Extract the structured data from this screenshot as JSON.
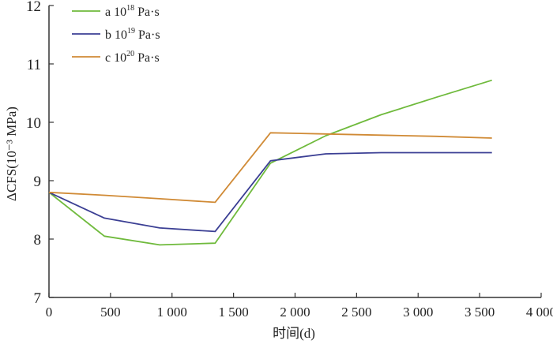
{
  "chart_data": {
    "type": "line",
    "title": "",
    "xlabel": "时间(d)",
    "ylabel": "ΔCFS(10⁻³ MPa)",
    "xlim": [
      0,
      4000
    ],
    "ylim": [
      7,
      12
    ],
    "xticks": [
      0,
      500,
      1000,
      1500,
      2000,
      2500,
      3000,
      3500,
      4000
    ],
    "xtick_labels": [
      "0",
      "500",
      "1 000",
      "1 500",
      "2 000",
      "2 500",
      "3 000",
      "3 500",
      "4 000"
    ],
    "yticks": [
      7,
      8,
      9,
      10,
      11,
      12
    ],
    "ytick_labels": [
      "7",
      "8",
      "9",
      "10",
      "11",
      "12"
    ],
    "grid": false,
    "legend_position": "top-left",
    "x": [
      0,
      450,
      900,
      1350,
      1800,
      2250,
      2700,
      3150,
      3600
    ],
    "series": [
      {
        "name": "a 10",
        "exp": "18",
        "unit": " Pa·s",
        "color": "#6fba3c",
        "values": [
          8.8,
          8.05,
          7.9,
          7.93,
          9.3,
          9.77,
          10.13,
          10.43,
          10.72
        ]
      },
      {
        "name": "b 10",
        "exp": "19",
        "unit": " Pa·s",
        "color": "#3b3f94",
        "values": [
          8.8,
          8.36,
          8.19,
          8.13,
          9.34,
          9.46,
          9.48,
          9.48,
          9.48
        ]
      },
      {
        "name": "c 10",
        "exp": "20",
        "unit": " Pa·s",
        "color": "#d08a35",
        "values": [
          8.8,
          8.75,
          8.69,
          8.63,
          9.82,
          9.8,
          9.78,
          9.76,
          9.73
        ]
      }
    ]
  }
}
